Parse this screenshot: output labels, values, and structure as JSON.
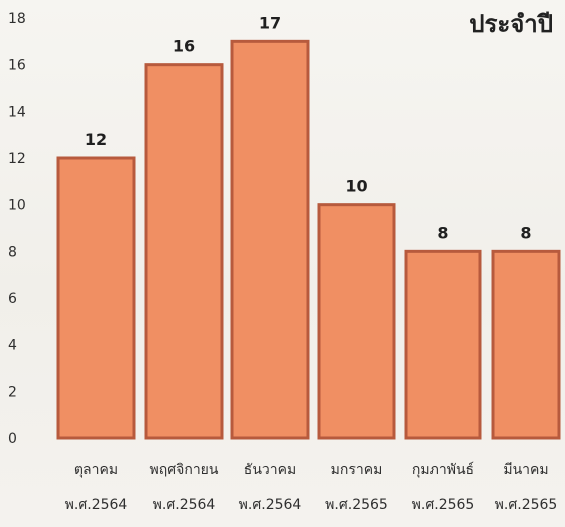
{
  "chart_data": {
    "type": "bar",
    "title": "ประจำปี",
    "xlabel": "",
    "ylabel": "",
    "ylim": [
      0,
      18
    ],
    "y_ticks": [
      0,
      2,
      4,
      6,
      8,
      10,
      12,
      14,
      16,
      18
    ],
    "categories": [
      [
        "ตุลาคม",
        "พ.ศ.2564"
      ],
      [
        "พฤศจิกายน",
        "พ.ศ.2564"
      ],
      [
        "ธันวาคม",
        "พ.ศ.2564"
      ],
      [
        "มกราคม",
        "พ.ศ.2565"
      ],
      [
        "กุมภาพันธ์",
        "พ.ศ.2565"
      ],
      [
        "มีนาคม",
        "พ.ศ.2565"
      ]
    ],
    "values": [
      12,
      16,
      17,
      10,
      8,
      8
    ],
    "grid": false,
    "colors": {
      "bar_fill": "#f08f63",
      "bar_stroke": "#b75a3d"
    }
  }
}
